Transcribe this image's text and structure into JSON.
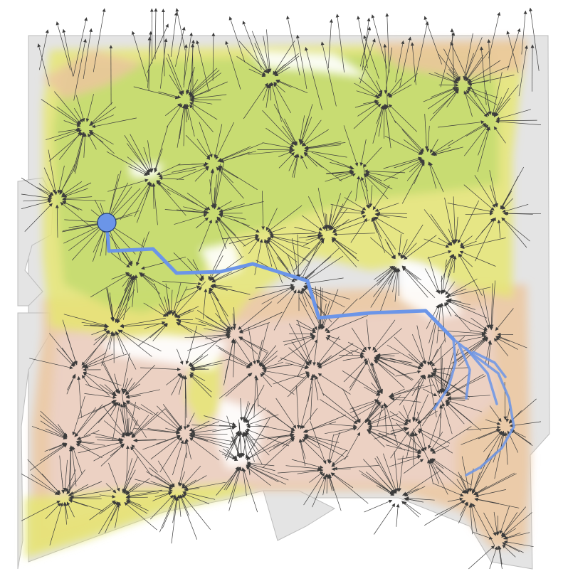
{
  "map": {
    "colors": {
      "background": "#ffffff",
      "land": "#e4e4e4",
      "land_outline": "#bdbdbd",
      "zone_green": "#c3dc6e",
      "zone_yellow": "#e6e674",
      "zone_tan": "#ecc79f",
      "zone_pink": "#ecd2c9",
      "flow_arrow": "#3d3d3d",
      "route": "#6b95e8",
      "origin_marker": "#6b95e8",
      "origin_outline": "#223f7a"
    },
    "icons": {
      "origin_marker": "origin-circle-icon",
      "flow_arrow": "arrowhead-icon"
    },
    "legend": "none",
    "labels": "none"
  }
}
